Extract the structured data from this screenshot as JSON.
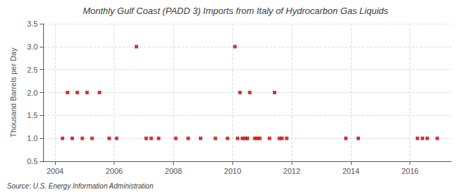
{
  "chart_data": {
    "type": "scatter",
    "title": "Monthly Gulf Coast (PADD 3) Imports from Italy of Hydrocarbon Gas Liquids",
    "ylabel": "Thousand Barrels per Day",
    "annotations": [
      "Source: U.S. Energy Information Administration"
    ],
    "x": [
      2004.25,
      2004.42,
      2004.58,
      2004.75,
      2004.92,
      2005.08,
      2005.25,
      2005.5,
      2005.83,
      2006.08,
      2006.75,
      2007.08,
      2007.25,
      2007.5,
      2008.08,
      2008.5,
      2008.92,
      2009.42,
      2009.83,
      2010.08,
      2010.17,
      2010.25,
      2010.33,
      2010.42,
      2010.5,
      2010.58,
      2010.75,
      2010.83,
      2010.92,
      2011.25,
      2011.42,
      2011.58,
      2011.67,
      2011.83,
      2013.83,
      2014.25,
      2016.25,
      2016.42,
      2016.58,
      2016.92
    ],
    "values": [
      1,
      2,
      1,
      2,
      1,
      2,
      1,
      2,
      1,
      1,
      3,
      1,
      1,
      1,
      1,
      1,
      1,
      1,
      1,
      3,
      1,
      2,
      1,
      1,
      1,
      2,
      1,
      1,
      1,
      1,
      2,
      1,
      1,
      1,
      1,
      1,
      1,
      1,
      1,
      1
    ],
    "color": "#cc0000",
    "marker": "square",
    "xlim": [
      2003.6,
      2017.4
    ],
    "xticks": [
      2004,
      2006,
      2008,
      2010,
      2012,
      2014,
      2016
    ],
    "ylim": [
      0.5,
      3.5
    ],
    "yticks": [
      0.5,
      {
        "value": 1.0,
        "label": "1.0"
      },
      1.5,
      {
        "value": 2.0,
        "label": "2.0"
      },
      2.5,
      {
        "value": 3.0,
        "label": "3.0"
      },
      3.5
    ],
    "grid": true
  }
}
